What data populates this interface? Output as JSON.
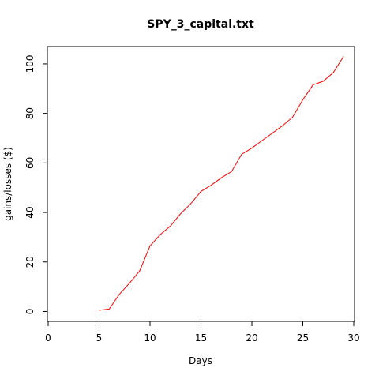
{
  "chart_data": {
    "type": "line",
    "title": "SPY_3_capital.txt",
    "xlabel": "Days",
    "ylabel": "gains/losses ($)",
    "xlim": [
      0,
      30
    ],
    "ylim": [
      -4,
      107
    ],
    "xticks": [
      "0",
      "5",
      "10",
      "15",
      "20",
      "25",
      "30"
    ],
    "yticks": [
      "0",
      "20",
      "40",
      "60",
      "80",
      "100"
    ],
    "grid": false,
    "line_color": "#ff0000",
    "series": [
      {
        "x": [
          5,
          6,
          7,
          8,
          9,
          10,
          11,
          12,
          13,
          14,
          15,
          16,
          17,
          18,
          19,
          20,
          21,
          22,
          23,
          24,
          25,
          26,
          27,
          28,
          29
        ],
        "y": [
          0.5,
          1,
          7,
          11.5,
          16.5,
          26.5,
          31,
          34.5,
          39.5,
          43.5,
          48.5,
          51,
          54,
          56.5,
          63.5,
          66,
          69,
          72,
          75,
          78.5,
          85.5,
          91.5,
          93,
          96.5,
          103
        ]
      }
    ]
  }
}
